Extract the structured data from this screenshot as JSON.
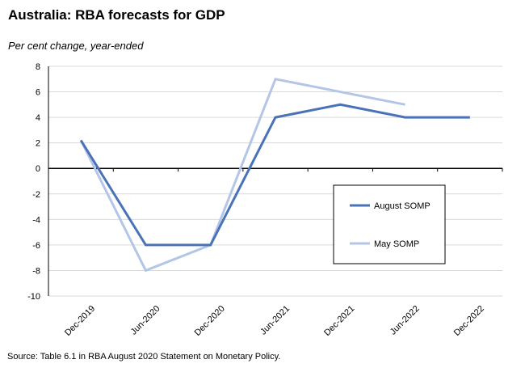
{
  "chart_data": {
    "type": "line",
    "title": "Australia: RBA forecasts for GDP",
    "subtitle": "Per cent change, year-ended",
    "source": "Source: Table 6.1 in RBA August 2020 Statement on Monetary Policy.",
    "categories": [
      "Dec-2019",
      "Jun-2020",
      "Dec-2020",
      "Jun-2021",
      "Dec-2021",
      "Jun-2022",
      "Dec-2022"
    ],
    "ylim": [
      -10,
      8
    ],
    "yticks": [
      8,
      6,
      4,
      2,
      0,
      -2,
      -4,
      -6,
      -8,
      -10
    ],
    "grid": true,
    "legend_position": "right-middle",
    "series": [
      {
        "name": "August SOMP",
        "color": "#4a72b8",
        "values": [
          2.2,
          -6,
          -6,
          4,
          5,
          4,
          4
        ]
      },
      {
        "name": "May SOMP",
        "color": "#b4c6e7",
        "values": [
          2.2,
          -8,
          -6,
          7,
          6,
          5,
          null
        ]
      }
    ]
  }
}
